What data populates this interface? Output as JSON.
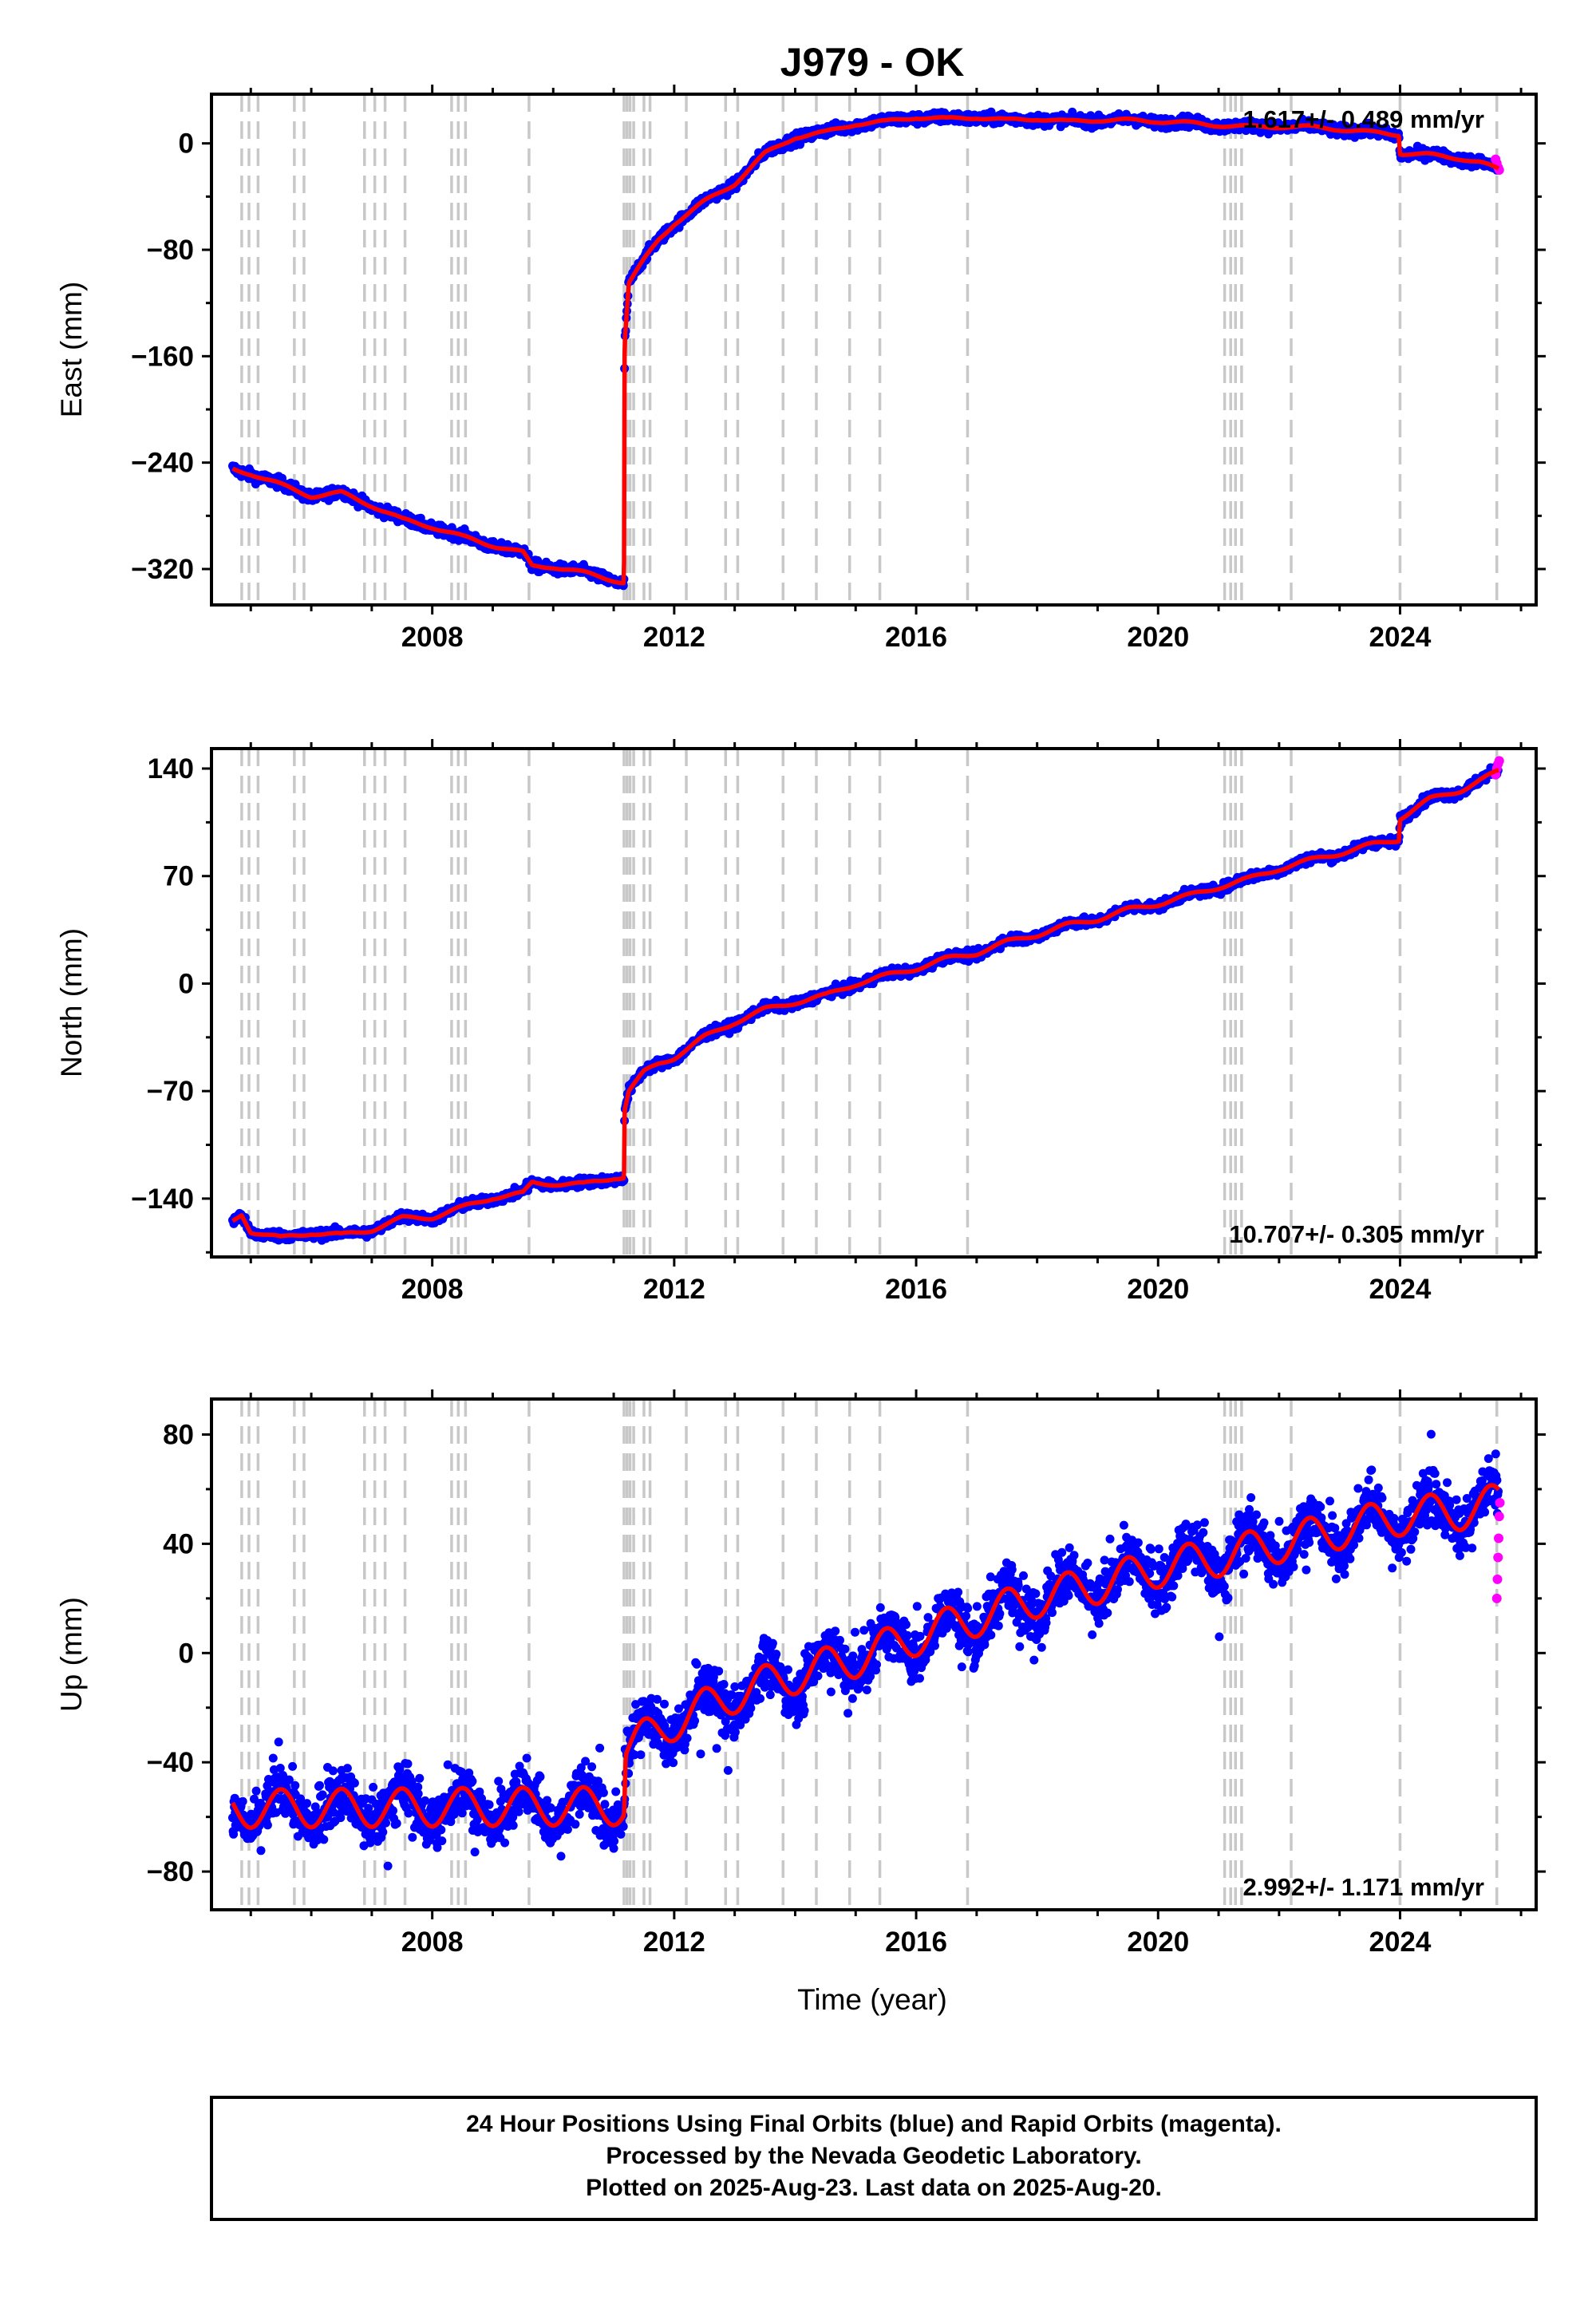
{
  "title": "J979 - OK",
  "xlabel": "Time (year)",
  "footer": {
    "line1": "24 Hour Positions Using Final Orbits (blue) and Rapid Orbits (magenta).",
    "line2": "Processed by the Nevada Geodetic Laboratory.",
    "line3": "Plotted on 2025-Aug-23. Last data on 2025-Aug-20."
  },
  "colors": {
    "final": "#0000ff",
    "rapid": "#ff00ff",
    "model": "#ff0000",
    "event_line": "#c8c8c8",
    "frame": "#000000"
  },
  "chart_data": [
    {
      "type": "scatter",
      "title": "J979 - OK",
      "xlabel": "",
      "ylabel": "East (mm)",
      "xlim": [
        2004.35,
        2026.25
      ],
      "ylim": [
        -347,
        37
      ],
      "xticks": [
        2008,
        2012,
        2016,
        2020,
        2024
      ],
      "yticks": [
        -320,
        -240,
        -160,
        -80,
        0
      ],
      "ytick_labels": [
        "−320",
        "−240",
        "−160",
        "−80",
        "0"
      ],
      "rate_label": "1.617+/- 0.489 mm/yr",
      "rate_position": "top-right",
      "grid": false,
      "events": [
        2004.85,
        2004.97,
        2005.12,
        2005.72,
        2005.88,
        2006.88,
        2007.05,
        2007.22,
        2007.55,
        2008.32,
        2008.43,
        2008.55,
        2009.6,
        2011.17,
        2011.22,
        2011.27,
        2011.33,
        2011.5,
        2011.6,
        2012.2,
        2012.85,
        2013.05,
        2013.8,
        2014.35,
        2014.9,
        2015.4,
        2016.85,
        2021.1,
        2021.2,
        2021.28,
        2021.38,
        2022.2,
        2024.0,
        2025.6
      ],
      "series": [
        {
          "kind": "model",
          "x": [
            2004.7,
            2005.0,
            2005.5,
            2006.0,
            2006.5,
            2007.0,
            2007.5,
            2008.0,
            2008.5,
            2009.0,
            2009.5,
            2009.65,
            2010.0,
            2010.5,
            2011.0,
            2011.17,
            2011.18,
            2011.25,
            2011.5,
            2011.75,
            2012.0,
            2012.5,
            2013.0,
            2013.5,
            2014.0,
            2014.5,
            2015.0,
            2015.5,
            2016.0,
            2016.5,
            2017.0,
            2017.5,
            2018.0,
            2018.5,
            2019.0,
            2019.5,
            2020.0,
            2020.5,
            2021.0,
            2021.5,
            2022.0,
            2022.5,
            2023.0,
            2023.5,
            2023.98,
            2024.0,
            2024.5,
            2025.0,
            2025.3,
            2025.63
          ],
          "y": [
            -245,
            -248,
            -257,
            -265,
            -263,
            -272,
            -283,
            -288,
            -296,
            -302,
            -308,
            -318,
            -318,
            -323,
            -328,
            -330,
            -150,
            -105,
            -88,
            -72,
            -60,
            -44,
            -30,
            -8,
            5,
            8,
            15,
            16,
            20,
            18,
            20,
            17,
            19,
            16,
            18,
            17,
            17,
            15,
            14,
            12,
            13,
            12,
            11,
            8,
            7,
            -7,
            -9,
            -11,
            -14,
            -20
          ]
        }
      ],
      "rapid_points": [
        [
          2025.58,
          -12
        ],
        [
          2025.6,
          -15
        ],
        [
          2025.62,
          -18
        ],
        [
          2025.64,
          -20
        ]
      ],
      "noise_mm": 4
    },
    {
      "type": "scatter",
      "xlabel": "",
      "ylabel": "North (mm)",
      "xlim": [
        2004.35,
        2026.25
      ],
      "ylim": [
        -178,
        153
      ],
      "xticks": [
        2008,
        2012,
        2016,
        2020,
        2024
      ],
      "yticks": [
        -140,
        -70,
        0,
        70,
        140
      ],
      "ytick_labels": [
        "−140",
        "−70",
        "0",
        "70",
        "140"
      ],
      "rate_label": "10.707+/- 0.305 mm/yr",
      "rate_position": "bottom-right",
      "grid": false,
      "events": [
        2004.85,
        2004.97,
        2005.12,
        2005.72,
        2005.88,
        2006.88,
        2007.05,
        2007.22,
        2007.55,
        2008.32,
        2008.43,
        2008.55,
        2009.6,
        2011.17,
        2011.22,
        2011.27,
        2011.33,
        2011.5,
        2011.6,
        2012.2,
        2012.85,
        2013.05,
        2013.8,
        2014.35,
        2014.9,
        2015.4,
        2016.85,
        2021.1,
        2021.2,
        2021.28,
        2021.38,
        2022.2,
        2024.0,
        2025.6
      ],
      "series": [
        {
          "kind": "model",
          "x": [
            2004.7,
            2004.85,
            2005.0,
            2005.5,
            2006.0,
            2006.5,
            2007.0,
            2007.5,
            2008.0,
            2008.5,
            2009.0,
            2009.5,
            2009.65,
            2010.0,
            2010.5,
            2011.0,
            2011.17,
            2011.18,
            2011.25,
            2011.5,
            2011.75,
            2012.0,
            2012.5,
            2013.0,
            2013.5,
            2014.0,
            2014.5,
            2015.0,
            2015.5,
            2016.0,
            2016.5,
            2017.0,
            2017.5,
            2018.0,
            2018.5,
            2019.0,
            2019.5,
            2020.0,
            2020.5,
            2021.0,
            2021.5,
            2022.0,
            2022.5,
            2023.0,
            2023.5,
            2023.98,
            2024.0,
            2024.5,
            2025.0,
            2025.63
          ],
          "y": [
            -155,
            -150,
            -161,
            -166,
            -162,
            -164,
            -160,
            -153,
            -152,
            -146,
            -139,
            -137,
            -130,
            -130,
            -131,
            -126,
            -126,
            -82,
            -70,
            -58,
            -52,
            -48,
            -35,
            -25,
            -17,
            -12,
            -8,
            0,
            5,
            10,
            16,
            20,
            27,
            32,
            38,
            42,
            48,
            52,
            57,
            63,
            68,
            75,
            80,
            85,
            90,
            94,
            108,
            120,
            126,
            138
          ]
        }
      ],
      "rapid_points": [
        [
          2025.58,
          136
        ],
        [
          2025.6,
          140
        ],
        [
          2025.62,
          143
        ],
        [
          2025.64,
          145
        ]
      ],
      "noise_mm": 3
    },
    {
      "type": "scatter",
      "xlabel": "Time (year)",
      "ylabel": "Up (mm)",
      "xlim": [
        2004.35,
        2026.25
      ],
      "ylim": [
        -94,
        93
      ],
      "xticks": [
        2008,
        2012,
        2016,
        2020,
        2024
      ],
      "yticks": [
        -80,
        -40,
        0,
        40,
        80
      ],
      "ytick_labels": [
        "−80",
        "−40",
        "0",
        "40",
        "80"
      ],
      "rate_label": "2.992+/- 1.171 mm/yr",
      "rate_position": "bottom-right",
      "grid": false,
      "events": [
        2004.85,
        2004.97,
        2005.12,
        2005.72,
        2005.88,
        2006.88,
        2007.05,
        2007.22,
        2007.55,
        2008.32,
        2008.43,
        2008.55,
        2009.6,
        2011.17,
        2011.22,
        2011.27,
        2011.33,
        2011.5,
        2011.6,
        2012.2,
        2012.85,
        2013.05,
        2013.8,
        2014.35,
        2014.9,
        2015.4,
        2016.85,
        2021.1,
        2021.2,
        2021.28,
        2021.38,
        2022.2,
        2024.0,
        2025.6
      ],
      "series": [
        {
          "kind": "model",
          "x": [
            2004.7,
            2011.17,
            2011.2,
            2012.0,
            2013.0,
            2014.0,
            2015.0,
            2016.0,
            2017.0,
            2018.0,
            2019.0,
            2020.0,
            2021.0,
            2022.0,
            2023.0,
            2024.0,
            2025.0,
            2025.63
          ],
          "y": [
            -57,
            -56,
            -35,
            -25,
            -15,
            -8,
            -2,
            6,
            13,
            20,
            25,
            31,
            35,
            40,
            45,
            50,
            52,
            55
          ],
          "seasonal_amp_mm": 7
        }
      ],
      "rapid_points": [
        [
          2025.6,
          20
        ],
        [
          2025.61,
          27
        ],
        [
          2025.62,
          35
        ],
        [
          2025.63,
          42
        ],
        [
          2025.64,
          50
        ],
        [
          2025.65,
          55
        ]
      ],
      "noise_mm": 9
    }
  ]
}
